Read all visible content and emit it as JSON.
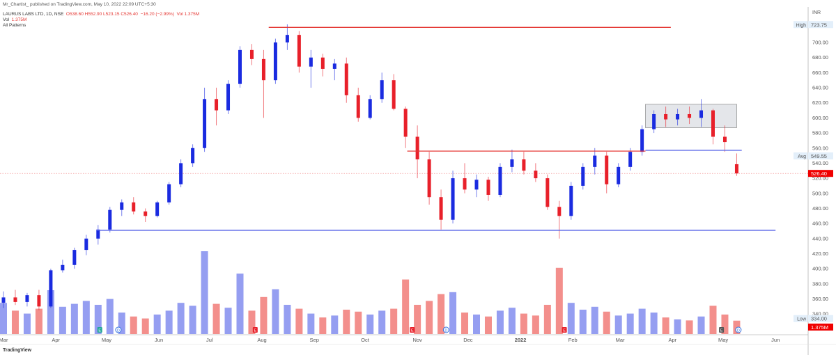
{
  "header": {
    "published": "Mr_Chartist_ published on TradingView.com, May 10, 2022 22:09 UTC+5:30",
    "symbol": "LAURUS LABS LTD, 1D, NSE",
    "ohlc": "O538.60 H552.90 L523.15 C526.40",
    "change": "−16.20 (−2.99%)",
    "vol_inline": "Vol 1.375M",
    "vol_label": "Vol",
    "vol_value": "1.375M",
    "indicator": "All Patterns"
  },
  "footer": {
    "brand": "TradingView"
  },
  "colors": {
    "up": "#1a2be0",
    "down": "#e8202a",
    "vol_up": "#8a93f0",
    "vol_down": "#f2837f",
    "last": "#f00000",
    "resistance": "#e53935",
    "support": "#5561e8",
    "box": "#e4e6ea"
  },
  "chart_data": {
    "type": "candlestick",
    "currency": "INR",
    "y_ticks": [
      340,
      360,
      380,
      400,
      420,
      440,
      460,
      480,
      500,
      520,
      540,
      560,
      580,
      600,
      620,
      640,
      660,
      680,
      700
    ],
    "ylim": [
      334,
      724
    ],
    "x_ticks": [
      {
        "label": "Mar",
        "date": "2021-03-01"
      },
      {
        "label": "Apr",
        "date": "2021-04-01"
      },
      {
        "label": "May",
        "date": "2021-05-01"
      },
      {
        "label": "Jun",
        "date": "2021-06-01"
      },
      {
        "label": "Jul",
        "date": "2021-07-01"
      },
      {
        "label": "Aug",
        "date": "2021-08-01"
      },
      {
        "label": "Sep",
        "date": "2021-09-01"
      },
      {
        "label": "Oct",
        "date": "2021-10-01"
      },
      {
        "label": "Nov",
        "date": "2021-11-01"
      },
      {
        "label": "Dec",
        "date": "2021-12-01"
      },
      {
        "label": "2022",
        "date": "2022-01-01"
      },
      {
        "label": "Feb",
        "date": "2022-02-01"
      },
      {
        "label": "Mar",
        "date": "2022-03-01"
      },
      {
        "label": "Apr",
        "date": "2022-04-01"
      },
      {
        "label": "May",
        "date": "2022-05-01"
      },
      {
        "label": "Jun",
        "date": "2022-06-01"
      }
    ],
    "axis_labels": {
      "high": {
        "label": "High",
        "value": "723.75"
      },
      "avg": {
        "label": "Avg",
        "value": "549.55"
      },
      "last": {
        "value": "526.40"
      },
      "low": {
        "label": "Low",
        "value": "334.00"
      },
      "last_vol": {
        "value": "1.375M"
      }
    },
    "last_price": 526.4,
    "candles": [
      [
        "2021-03-01",
        355,
        370,
        348,
        362,
        3.2
      ],
      [
        "2021-03-08",
        362,
        372,
        352,
        356,
        2.4
      ],
      [
        "2021-03-15",
        356,
        368,
        350,
        365,
        2.1
      ],
      [
        "2021-03-22",
        365,
        372,
        345,
        350,
        2.6
      ],
      [
        "2021-03-29",
        350,
        400,
        348,
        398,
        4.5
      ],
      [
        "2021-04-05",
        398,
        412,
        395,
        405,
        2.8
      ],
      [
        "2021-04-12",
        405,
        428,
        400,
        425,
        3.1
      ],
      [
        "2021-04-19",
        425,
        445,
        418,
        440,
        3.4
      ],
      [
        "2021-04-26",
        440,
        458,
        432,
        452,
        3.0
      ],
      [
        "2021-05-03",
        452,
        482,
        448,
        478,
        3.6
      ],
      [
        "2021-05-10",
        478,
        492,
        470,
        488,
        2.2
      ],
      [
        "2021-05-17",
        488,
        495,
        472,
        476,
        1.8
      ],
      [
        "2021-05-24",
        476,
        480,
        462,
        470,
        1.6
      ],
      [
        "2021-05-31",
        470,
        490,
        468,
        488,
        2.0
      ],
      [
        "2021-06-07",
        488,
        515,
        485,
        512,
        2.4
      ],
      [
        "2021-06-14",
        512,
        545,
        508,
        540,
        3.2
      ],
      [
        "2021-06-21",
        540,
        565,
        535,
        560,
        2.9
      ],
      [
        "2021-06-28",
        560,
        640,
        555,
        625,
        8.5
      ],
      [
        "2021-07-05",
        625,
        640,
        590,
        610,
        3.1
      ],
      [
        "2021-07-12",
        610,
        650,
        605,
        645,
        2.7
      ],
      [
        "2021-07-19",
        645,
        695,
        640,
        690,
        6.2
      ],
      [
        "2021-07-26",
        690,
        698,
        670,
        678,
        2.4
      ],
      [
        "2021-08-02",
        678,
        690,
        600,
        650,
        3.8
      ],
      [
        "2021-08-09",
        650,
        705,
        645,
        700,
        4.6
      ],
      [
        "2021-08-16",
        700,
        724,
        690,
        710,
        3.0
      ],
      [
        "2021-08-23",
        710,
        715,
        660,
        668,
        2.6
      ],
      [
        "2021-08-30",
        668,
        690,
        640,
        680,
        2.1
      ],
      [
        "2021-09-06",
        680,
        685,
        655,
        665,
        1.7
      ],
      [
        "2021-09-13",
        665,
        678,
        650,
        672,
        1.9
      ],
      [
        "2021-09-20",
        672,
        680,
        620,
        630,
        2.5
      ],
      [
        "2021-09-27",
        630,
        640,
        595,
        600,
        2.3
      ],
      [
        "2021-10-04",
        600,
        630,
        598,
        625,
        2.0
      ],
      [
        "2021-10-11",
        625,
        660,
        620,
        650,
        2.4
      ],
      [
        "2021-10-18",
        650,
        658,
        610,
        612,
        2.6
      ],
      [
        "2021-10-25",
        612,
        615,
        560,
        575,
        5.6
      ],
      [
        "2021-11-01",
        575,
        590,
        520,
        545,
        3.0
      ],
      [
        "2021-11-08",
        545,
        555,
        485,
        495,
        3.4
      ],
      [
        "2021-11-15",
        495,
        505,
        452,
        465,
        4.1
      ],
      [
        "2021-11-22",
        465,
        530,
        460,
        520,
        4.3
      ],
      [
        "2021-11-29",
        520,
        540,
        500,
        505,
        2.2
      ],
      [
        "2021-12-06",
        505,
        525,
        495,
        518,
        2.0
      ],
      [
        "2021-12-13",
        518,
        522,
        490,
        498,
        1.8
      ],
      [
        "2021-12-20",
        498,
        540,
        495,
        535,
        2.4
      ],
      [
        "2021-12-27",
        535,
        558,
        528,
        545,
        2.7
      ],
      [
        "2022-01-03",
        545,
        555,
        525,
        530,
        2.1
      ],
      [
        "2022-01-10",
        530,
        540,
        515,
        520,
        1.9
      ],
      [
        "2022-01-17",
        520,
        525,
        478,
        482,
        3.0
      ],
      [
        "2022-01-24",
        482,
        490,
        440,
        470,
        6.8
      ],
      [
        "2022-01-31",
        470,
        515,
        465,
        510,
        3.2
      ],
      [
        "2022-02-07",
        510,
        540,
        505,
        535,
        2.5
      ],
      [
        "2022-02-14",
        535,
        560,
        525,
        550,
        2.8
      ],
      [
        "2022-02-21",
        550,
        555,
        500,
        512,
        2.3
      ],
      [
        "2022-02-28",
        512,
        540,
        508,
        535,
        1.9
      ],
      [
        "2022-03-07",
        535,
        560,
        530,
        555,
        2.1
      ],
      [
        "2022-03-14",
        555,
        590,
        550,
        585,
        2.6
      ],
      [
        "2022-03-21",
        585,
        610,
        580,
        605,
        2.2
      ],
      [
        "2022-03-28",
        605,
        615,
        588,
        598,
        1.7
      ],
      [
        "2022-04-04",
        598,
        612,
        590,
        605,
        1.5
      ],
      [
        "2022-04-11",
        605,
        615,
        592,
        600,
        1.4
      ],
      [
        "2022-04-18",
        600,
        625,
        588,
        610,
        1.8
      ],
      [
        "2022-04-25",
        610,
        612,
        565,
        575,
        2.9
      ],
      [
        "2022-05-02",
        575,
        590,
        555,
        568,
        2.0
      ],
      [
        "2022-05-09",
        538.6,
        552.9,
        523.15,
        526.4,
        1.375
      ]
    ],
    "lines": [
      {
        "type": "resistance",
        "price": 720,
        "from": "2021-08-05",
        "to": "2022-03-31"
      },
      {
        "type": "resistance",
        "price": 556,
        "from": "2021-10-26",
        "to": "2022-03-16"
      },
      {
        "type": "support",
        "price": 451,
        "from": "2021-04-25",
        "to": "2022-06-01"
      },
      {
        "type": "support",
        "price": 557,
        "from": "2022-03-16",
        "to": "2022-05-12"
      }
    ],
    "box": {
      "from": "2022-03-16",
      "to": "2022-05-09",
      "top": 618,
      "bottom": 587
    },
    "events": [
      {
        "letter": "E",
        "date": "2021-04-27",
        "kind": "earnings-up"
      },
      {
        "letter": "D",
        "date": "2021-05-08",
        "kind": "dividend"
      },
      {
        "letter": "E",
        "date": "2021-07-28",
        "kind": "earnings-down"
      },
      {
        "letter": "E",
        "date": "2021-10-29",
        "kind": "earnings-down"
      },
      {
        "letter": "D",
        "date": "2021-11-18",
        "kind": "dividend"
      },
      {
        "letter": "E",
        "date": "2022-01-27",
        "kind": "earnings-down"
      },
      {
        "letter": "E",
        "date": "2022-04-30",
        "kind": "earnings-neutral"
      },
      {
        "letter": "D",
        "date": "2022-05-10",
        "kind": "dividend"
      }
    ]
  }
}
